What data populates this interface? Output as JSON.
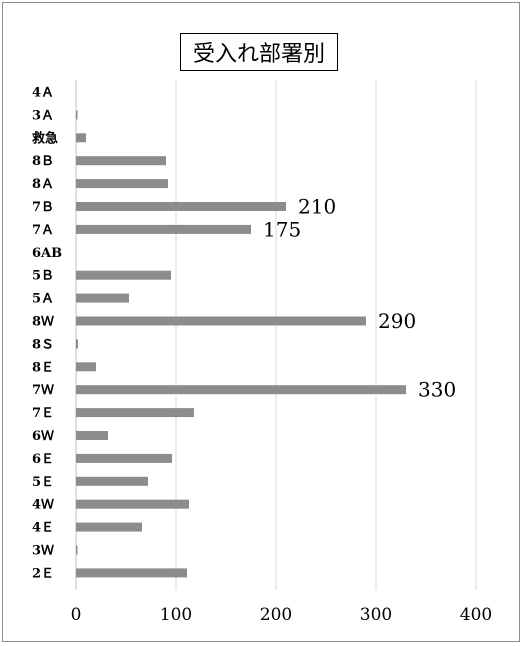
{
  "chart_data": {
    "type": "bar",
    "orientation": "horizontal",
    "title": "受入れ部署別",
    "categories": [
      "4Ａ",
      "3Ａ",
      "救急",
      "8Ｂ",
      "8Ａ",
      "7Ｂ",
      "7Ａ",
      "6AB",
      "5Ｂ",
      "5Ａ",
      "8Ｗ",
      "8Ｓ",
      "8Ｅ",
      "7Ｗ",
      "7Ｅ",
      "6Ｗ",
      "6Ｅ",
      "5Ｅ",
      "4Ｗ",
      "4Ｅ",
      "3Ｗ",
      "2Ｅ"
    ],
    "values": [
      0,
      1,
      10,
      90,
      92,
      210,
      175,
      0,
      95,
      53,
      290,
      2,
      20,
      330,
      118,
      32,
      96,
      72,
      113,
      66,
      1,
      111
    ],
    "data_labels": [
      {
        "category": "7Ｂ",
        "text": "210"
      },
      {
        "category": "7Ａ",
        "text": "175"
      },
      {
        "category": "8Ｗ",
        "text": "290"
      },
      {
        "category": "7Ｗ",
        "text": "330"
      }
    ],
    "xlim": [
      0,
      400
    ],
    "xticks": [
      "0",
      "100",
      "200",
      "300",
      "400"
    ],
    "grid": true,
    "bar_color": "#8c8c8c"
  }
}
